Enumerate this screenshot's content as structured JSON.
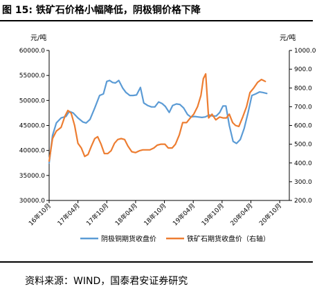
{
  "header": {
    "figure_label": "图 15:",
    "figure_title": "铁矿石价格小幅降低，阴极铜价格下降"
  },
  "footer": {
    "source": "资料来源：WIND，国泰君安证券研究"
  },
  "colors": {
    "copper": "#5b9bd5",
    "iron": "#ed7d31"
  },
  "chart_data": {
    "type": "line",
    "title": "",
    "y_left_label": "元/吨",
    "y_right_label": "元/吨",
    "y_left_range": [
      30000,
      60000
    ],
    "y_left_ticks": [
      "30000.0",
      "35000.0",
      "40000.0",
      "45000.0",
      "50000.0",
      "55000.0",
      "60000.0"
    ],
    "y_right_range": [
      200,
      1000
    ],
    "y_right_ticks": [
      "200.0",
      "300.0",
      "400.0",
      "500.0",
      "600.0",
      "700.0",
      "800.0",
      "900.0",
      "1000.0"
    ],
    "x_range": [
      0,
      50
    ],
    "x_ticks": [
      {
        "t": 0,
        "label": "16年10月"
      },
      {
        "t": 6,
        "label": "17年04月"
      },
      {
        "t": 12,
        "label": "17年10月"
      },
      {
        "t": 18,
        "label": "18年04月"
      },
      {
        "t": 24,
        "label": "18年10月"
      },
      {
        "t": 30,
        "label": "19年04月"
      },
      {
        "t": 36,
        "label": "19年10月"
      },
      {
        "t": 42,
        "label": "20年04月"
      },
      {
        "t": 48,
        "label": "20年10月"
      }
    ],
    "legend_position": "bottom",
    "series": [
      {
        "name": "阴极铜期货收盘价",
        "axis": "left",
        "points": [
          [
            0,
            37500
          ],
          [
            0.7,
            43000
          ],
          [
            1.5,
            45500
          ],
          [
            2.5,
            46500
          ],
          [
            3.5,
            46800
          ],
          [
            4.2,
            47800
          ],
          [
            5,
            47500
          ],
          [
            6,
            46500
          ],
          [
            7,
            45700
          ],
          [
            7.7,
            45500
          ],
          [
            8.5,
            46200
          ],
          [
            9.5,
            48500
          ],
          [
            10.5,
            51000
          ],
          [
            11.3,
            51300
          ],
          [
            12,
            53800
          ],
          [
            12.6,
            54000
          ],
          [
            13.2,
            53600
          ],
          [
            13.8,
            53500
          ],
          [
            14.5,
            54000
          ],
          [
            15.3,
            52500
          ],
          [
            16,
            51600
          ],
          [
            16.8,
            51000
          ],
          [
            17.5,
            51000
          ],
          [
            18.2,
            51100
          ],
          [
            19,
            52600
          ],
          [
            19.7,
            49500
          ],
          [
            20.5,
            49000
          ],
          [
            21.3,
            48700
          ],
          [
            22,
            48700
          ],
          [
            22.8,
            49700
          ],
          [
            23.5,
            49400
          ],
          [
            24.2,
            48800
          ],
          [
            25,
            47600
          ],
          [
            25.7,
            49000
          ],
          [
            26.5,
            49300
          ],
          [
            27.2,
            49200
          ],
          [
            28,
            48500
          ],
          [
            28.8,
            47200
          ],
          [
            29.5,
            46700
          ],
          [
            30.3,
            46800
          ],
          [
            31,
            46700
          ],
          [
            31.8,
            46600
          ],
          [
            32.5,
            46700
          ],
          [
            33.3,
            47100
          ],
          [
            34,
            46900
          ],
          [
            34.8,
            46900
          ],
          [
            35.5,
            47600
          ],
          [
            36.2,
            48900
          ],
          [
            36.8,
            48900
          ],
          [
            37.5,
            45000
          ],
          [
            38.3,
            41800
          ],
          [
            39,
            41400
          ],
          [
            39.8,
            42200
          ],
          [
            40.6,
            44400
          ],
          [
            41.4,
            47500
          ],
          [
            42.2,
            51000
          ],
          [
            43,
            51300
          ],
          [
            43.8,
            51700
          ],
          [
            44.5,
            51600
          ],
          [
            45.3,
            51400
          ]
        ]
      },
      {
        "name": "铁矿石期货收盘价（右轴）",
        "axis": "right",
        "points": [
          [
            0,
            410
          ],
          [
            0.7,
            530
          ],
          [
            1.5,
            570
          ],
          [
            2.5,
            590
          ],
          [
            3.3,
            650
          ],
          [
            3.9,
            680
          ],
          [
            4.6,
            665
          ],
          [
            5.3,
            600
          ],
          [
            6,
            505
          ],
          [
            6.7,
            480
          ],
          [
            7.4,
            435
          ],
          [
            8.1,
            445
          ],
          [
            8.8,
            490
          ],
          [
            9.5,
            530
          ],
          [
            10.1,
            540
          ],
          [
            10.8,
            500
          ],
          [
            11.5,
            450
          ],
          [
            12.2,
            450
          ],
          [
            12.9,
            465
          ],
          [
            13.6,
            505
          ],
          [
            14.3,
            525
          ],
          [
            15,
            530
          ],
          [
            15.7,
            525
          ],
          [
            16.4,
            490
          ],
          [
            17.2,
            460
          ],
          [
            18,
            455
          ],
          [
            18.8,
            465
          ],
          [
            19.5,
            470
          ],
          [
            20.3,
            470
          ],
          [
            21,
            470
          ],
          [
            21.8,
            480
          ],
          [
            22.5,
            495
          ],
          [
            23.3,
            500
          ],
          [
            24.1,
            500
          ],
          [
            24.8,
            480
          ],
          [
            25.6,
            480
          ],
          [
            26.3,
            500
          ],
          [
            27.1,
            550
          ],
          [
            27.8,
            615
          ],
          [
            28.6,
            615
          ],
          [
            29.4,
            640
          ],
          [
            30.1,
            660
          ],
          [
            30.9,
            700
          ],
          [
            31.6,
            760
          ],
          [
            32.1,
            850
          ],
          [
            32.6,
            875
          ],
          [
            33.2,
            640
          ],
          [
            33.9,
            660
          ],
          [
            34.7,
            630
          ],
          [
            35.5,
            645
          ],
          [
            36.2,
            640
          ],
          [
            36.9,
            640
          ],
          [
            37.5,
            660
          ],
          [
            38.2,
            615
          ],
          [
            38.8,
            600
          ],
          [
            39.5,
            595
          ],
          [
            40.3,
            645
          ],
          [
            41.1,
            700
          ],
          [
            41.8,
            775
          ],
          [
            42.6,
            800
          ],
          [
            43.4,
            830
          ],
          [
            44.2,
            845
          ],
          [
            45,
            835
          ]
        ]
      }
    ]
  }
}
